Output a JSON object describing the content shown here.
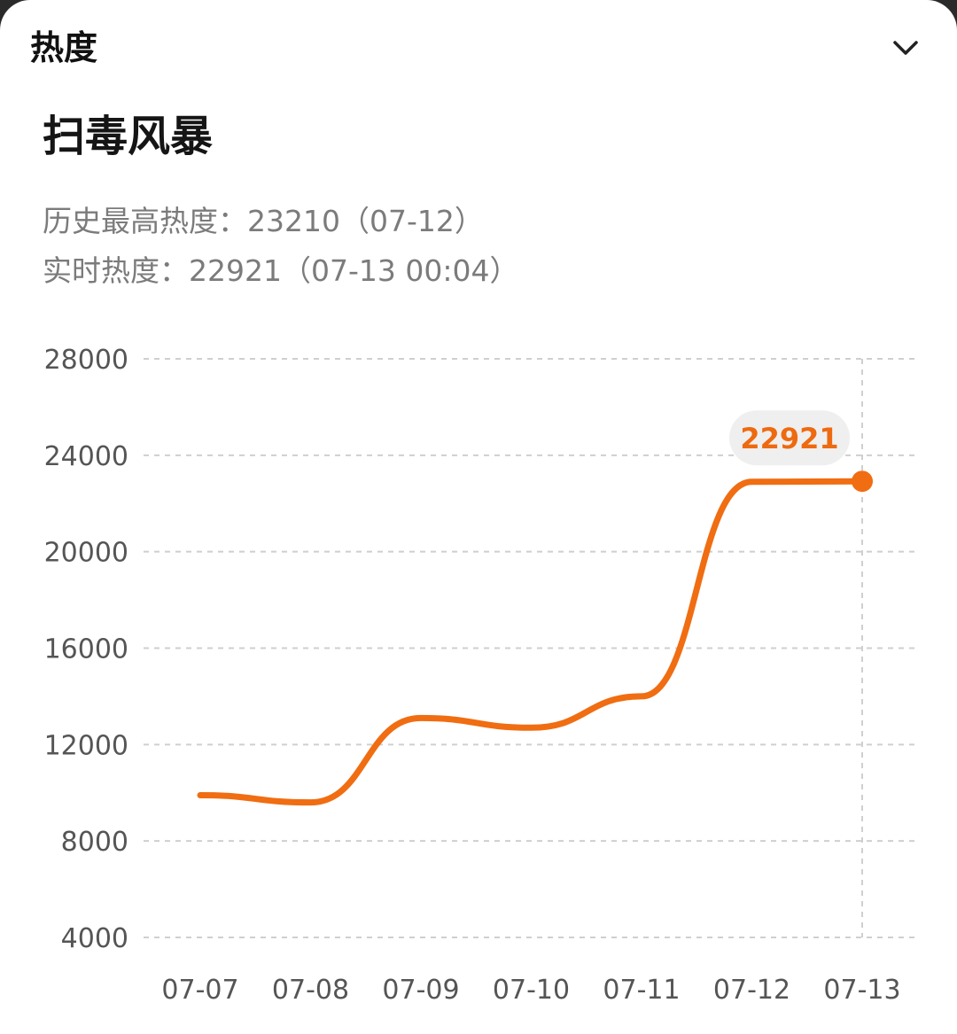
{
  "header": {
    "title": "热度"
  },
  "topic": {
    "title": "扫毒风暴"
  },
  "stats": {
    "peak": "历史最高热度：23210（07-12）",
    "realtime": "实时热度：22921（07-13 00:04）"
  },
  "colors": {
    "line": "#f06d12",
    "callout_bg": "#efefef",
    "callout_text": "#ee6a10",
    "grid": "#cfcfcf"
  },
  "chart_data": {
    "type": "line",
    "x": [
      "07-07",
      "07-08",
      "07-09",
      "07-10",
      "07-11",
      "07-12",
      "07-13"
    ],
    "y_ticks": [
      28000,
      24000,
      20000,
      16000,
      12000,
      8000,
      4000
    ],
    "ylim": [
      4000,
      28000
    ],
    "grid": true,
    "series": [
      {
        "points": [
          {
            "x": "07-07",
            "y": 9900
          },
          {
            "x": "07-08",
            "y": 9600
          },
          {
            "x": "07-09",
            "y": 13100
          },
          {
            "x": "07-10",
            "y": 12700
          },
          {
            "x": "07-11",
            "y": 14000
          },
          {
            "x": "07-12",
            "y": 22900
          },
          {
            "x": "07-13",
            "y": 22921
          }
        ]
      }
    ],
    "annotation": {
      "x": "07-13",
      "y": 22921,
      "label": "22921"
    }
  }
}
